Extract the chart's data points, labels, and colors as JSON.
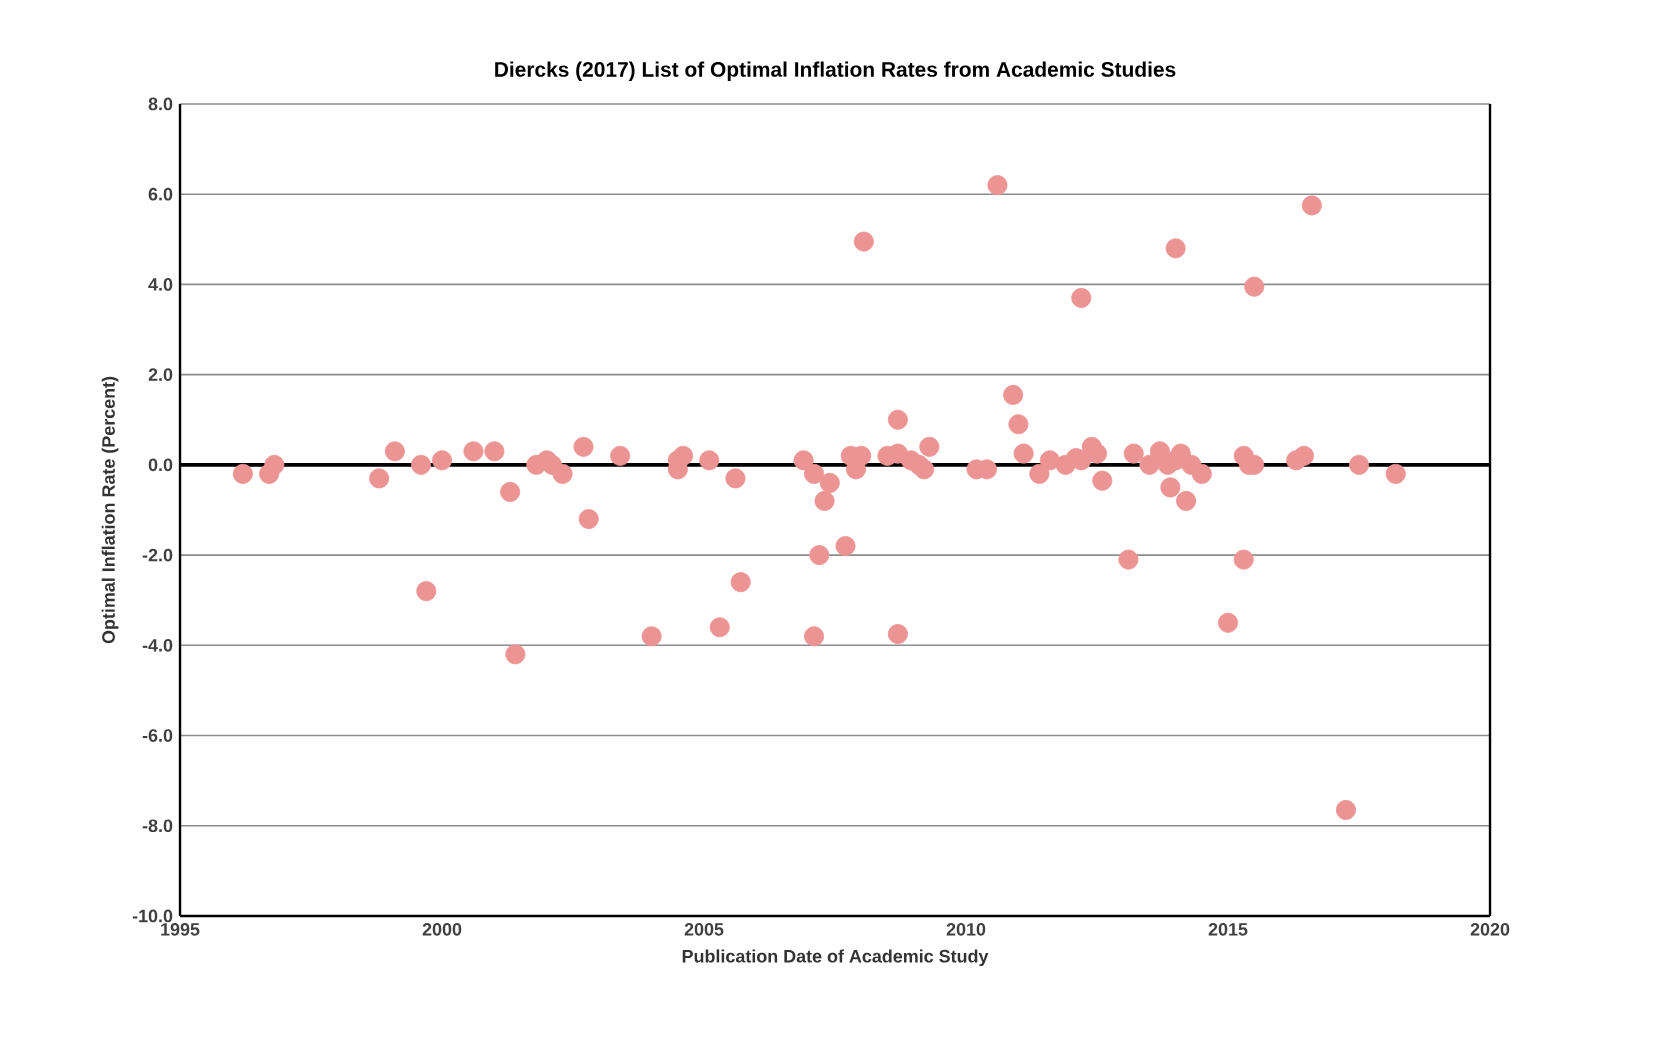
{
  "chart_data": {
    "type": "scatter",
    "title": "Diercks (2017) List of Optimal Inflation Rates from Academic Studies",
    "xlabel": "Publication Date of Academic Study",
    "ylabel": "Optimal Inflation Rate (Percent)",
    "xlim": [
      1995,
      2020
    ],
    "xticks": [
      1995,
      2000,
      2005,
      2010,
      2015,
      2020
    ],
    "ylim": [
      -10,
      8
    ],
    "yticks": [
      {
        "value": -10,
        "label": "-10.0"
      },
      {
        "value": -8,
        "label": "-8.0"
      },
      {
        "value": -6,
        "label": "-6.0"
      },
      {
        "value": -4,
        "label": "-4.0"
      },
      {
        "value": -2,
        "label": "-2.0"
      },
      {
        "value": 0,
        "label": "0.0"
      },
      {
        "value": 2,
        "label": "2.0"
      },
      {
        "value": 4,
        "label": "4.0"
      },
      {
        "value": 6,
        "label": "6.0"
      },
      {
        "value": 8,
        "label": "8.0"
      }
    ],
    "grid": "y",
    "marker": "circle",
    "ref_lines": [
      {
        "axis": "y",
        "value": 0,
        "color": "#000000"
      }
    ],
    "series": [
      {
        "color": "#ec9494",
        "x": [
          1996.2,
          1996.7,
          1996.8,
          1998.8,
          1999.1,
          1999.6,
          1999.7,
          2000.0,
          2000.6,
          2001.0,
          2001.3,
          2001.4,
          2001.8,
          2002.0,
          2002.1,
          2002.3,
          2002.7,
          2002.8,
          2003.4,
          2004.0,
          2004.5,
          2004.5,
          2004.6,
          2005.1,
          2005.3,
          2005.6,
          2005.7,
          2006.9,
          2007.1,
          2007.2,
          2007.1,
          2007.3,
          2007.4,
          2007.7,
          2007.8,
          2007.9,
          2008.0,
          2008.05,
          2008.5,
          2008.7,
          2008.7,
          2008.7,
          2008.95,
          2009.1,
          2009.2,
          2009.3,
          2010.2,
          2010.4,
          2010.6,
          2010.9,
          2011.0,
          2011.1,
          2011.4,
          2011.6,
          2011.9,
          2012.1,
          2012.2,
          2012.2,
          2012.4,
          2012.5,
          2012.6,
          2013.1,
          2013.2,
          2013.5,
          2013.7,
          2013.85,
          2013.9,
          2014.0,
          2014.0,
          2014.1,
          2014.2,
          2014.3,
          2014.5,
          2015.0,
          2015.3,
          2015.3,
          2015.4,
          2015.5,
          2015.5,
          2016.3,
          2016.45,
          2016.6,
          2017.25,
          2017.5,
          2018.2
        ],
        "values": [
          -0.2,
          -0.2,
          0.0,
          -0.3,
          0.3,
          0.0,
          -2.8,
          0.1,
          0.3,
          0.3,
          -0.6,
          -4.2,
          0.0,
          0.1,
          0.0,
          -0.2,
          0.4,
          -1.2,
          0.2,
          -3.8,
          -0.1,
          0.1,
          0.2,
          0.1,
          -3.6,
          -0.3,
          -2.6,
          0.1,
          -3.8,
          -2.0,
          -0.2,
          -0.8,
          -0.4,
          -1.8,
          0.2,
          -0.1,
          0.2,
          4.95,
          0.2,
          -3.75,
          1.0,
          0.25,
          0.1,
          0.0,
          -0.1,
          0.4,
          -0.1,
          -0.1,
          6.2,
          1.55,
          0.9,
          0.25,
          -0.2,
          0.1,
          0.0,
          0.15,
          0.1,
          3.7,
          0.4,
          0.25,
          -0.35,
          -2.1,
          0.25,
          0.0,
          0.3,
          0.0,
          -0.5,
          4.8,
          0.1,
          0.25,
          -0.8,
          0.0,
          -0.2,
          -3.5,
          0.2,
          -2.1,
          0.0,
          0.0,
          3.95,
          0.1,
          0.2,
          5.75,
          -7.65,
          0.0,
          -0.2
        ]
      }
    ]
  }
}
